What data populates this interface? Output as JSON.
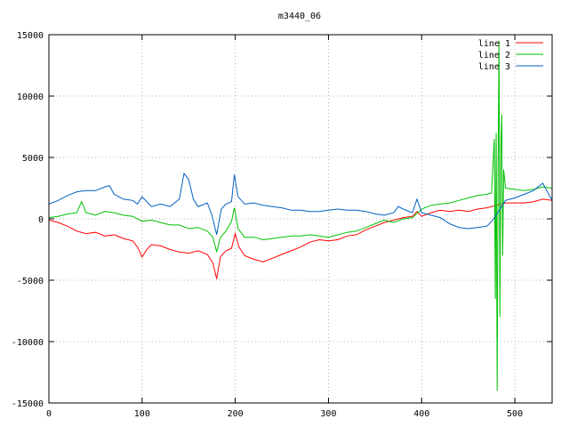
{
  "chart_data": {
    "type": "line",
    "title": "m3440_06",
    "xlabel": "",
    "ylabel": "",
    "xlim": [
      0,
      540
    ],
    "ylim": [
      -15000,
      15000
    ],
    "x_ticks": [
      0,
      100,
      200,
      300,
      400,
      500
    ],
    "y_ticks": [
      -15000,
      -10000,
      -5000,
      0,
      5000,
      10000,
      15000
    ],
    "grid": true,
    "legend_position": "top-right",
    "series": [
      {
        "name": "line 1",
        "color": "#ff0000",
        "points": [
          [
            0,
            -100
          ],
          [
            10,
            -300
          ],
          [
            20,
            -600
          ],
          [
            30,
            -1000
          ],
          [
            40,
            -1200
          ],
          [
            50,
            -1100
          ],
          [
            60,
            -1400
          ],
          [
            70,
            -1300
          ],
          [
            80,
            -1600
          ],
          [
            90,
            -1800
          ],
          [
            95,
            -2300
          ],
          [
            100,
            -3100
          ],
          [
            105,
            -2500
          ],
          [
            110,
            -2100
          ],
          [
            120,
            -2200
          ],
          [
            130,
            -2500
          ],
          [
            140,
            -2700
          ],
          [
            150,
            -2800
          ],
          [
            160,
            -2600
          ],
          [
            170,
            -2900
          ],
          [
            176,
            -3600
          ],
          [
            180,
            -4900
          ],
          [
            184,
            -3100
          ],
          [
            190,
            -2600
          ],
          [
            196,
            -2400
          ],
          [
            200,
            -1200
          ],
          [
            204,
            -2300
          ],
          [
            210,
            -3000
          ],
          [
            220,
            -3300
          ],
          [
            230,
            -3500
          ],
          [
            240,
            -3200
          ],
          [
            250,
            -2900
          ],
          [
            260,
            -2600
          ],
          [
            270,
            -2300
          ],
          [
            280,
            -1900
          ],
          [
            290,
            -1700
          ],
          [
            300,
            -1800
          ],
          [
            310,
            -1700
          ],
          [
            320,
            -1400
          ],
          [
            330,
            -1300
          ],
          [
            340,
            -900
          ],
          [
            350,
            -600
          ],
          [
            360,
            -300
          ],
          [
            370,
            -100
          ],
          [
            380,
            100
          ],
          [
            390,
            200
          ],
          [
            395,
            600
          ],
          [
            400,
            200
          ],
          [
            410,
            500
          ],
          [
            420,
            700
          ],
          [
            430,
            600
          ],
          [
            440,
            700
          ],
          [
            450,
            600
          ],
          [
            460,
            800
          ],
          [
            470,
            900
          ],
          [
            480,
            1100
          ],
          [
            490,
            1300
          ],
          [
            500,
            1300
          ],
          [
            510,
            1300
          ],
          [
            520,
            1400
          ],
          [
            530,
            1600
          ],
          [
            540,
            1500
          ]
        ]
      },
      {
        "name": "line 2",
        "color": "#00c000",
        "points": [
          [
            0,
            100
          ],
          [
            10,
            200
          ],
          [
            20,
            400
          ],
          [
            30,
            500
          ],
          [
            35,
            1400
          ],
          [
            40,
            500
          ],
          [
            50,
            300
          ],
          [
            60,
            600
          ],
          [
            70,
            500
          ],
          [
            80,
            300
          ],
          [
            90,
            200
          ],
          [
            100,
            -200
          ],
          [
            110,
            -100
          ],
          [
            120,
            -300
          ],
          [
            130,
            -500
          ],
          [
            140,
            -500
          ],
          [
            150,
            -800
          ],
          [
            160,
            -700
          ],
          [
            170,
            -1000
          ],
          [
            176,
            -1500
          ],
          [
            180,
            -2700
          ],
          [
            184,
            -1500
          ],
          [
            190,
            -1000
          ],
          [
            196,
            -200
          ],
          [
            199,
            900
          ],
          [
            203,
            -800
          ],
          [
            210,
            -1500
          ],
          [
            220,
            -1500
          ],
          [
            230,
            -1700
          ],
          [
            240,
            -1600
          ],
          [
            250,
            -1500
          ],
          [
            260,
            -1400
          ],
          [
            270,
            -1400
          ],
          [
            280,
            -1300
          ],
          [
            290,
            -1400
          ],
          [
            300,
            -1500
          ],
          [
            310,
            -1300
          ],
          [
            320,
            -1100
          ],
          [
            330,
            -1000
          ],
          [
            340,
            -700
          ],
          [
            350,
            -400
          ],
          [
            360,
            -100
          ],
          [
            370,
            -300
          ],
          [
            380,
            0
          ],
          [
            390,
            100
          ],
          [
            400,
            800
          ],
          [
            410,
            1100
          ],
          [
            420,
            1200
          ],
          [
            430,
            1300
          ],
          [
            440,
            1500
          ],
          [
            450,
            1700
          ],
          [
            460,
            1900
          ],
          [
            470,
            2000
          ],
          [
            475,
            2100
          ],
          [
            478,
            6500
          ],
          [
            479,
            -6500
          ],
          [
            480,
            7000
          ],
          [
            481,
            -14000
          ],
          [
            482,
            4000
          ],
          [
            483,
            14500
          ],
          [
            484,
            -8000
          ],
          [
            485,
            6000
          ],
          [
            486,
            8500
          ],
          [
            487,
            -3000
          ],
          [
            488,
            4000
          ],
          [
            490,
            2500
          ],
          [
            500,
            2400
          ],
          [
            510,
            2300
          ],
          [
            520,
            2400
          ],
          [
            530,
            2600
          ],
          [
            540,
            2500
          ]
        ]
      },
      {
        "name": "line 3",
        "color": "#0060c0",
        "points": [
          [
            0,
            1200
          ],
          [
            10,
            1500
          ],
          [
            20,
            1900
          ],
          [
            30,
            2200
          ],
          [
            40,
            2300
          ],
          [
            50,
            2300
          ],
          [
            60,
            2600
          ],
          [
            65,
            2700
          ],
          [
            70,
            2000
          ],
          [
            80,
            1600
          ],
          [
            90,
            1500
          ],
          [
            95,
            1200
          ],
          [
            100,
            1800
          ],
          [
            110,
            1000
          ],
          [
            120,
            1200
          ],
          [
            130,
            1000
          ],
          [
            140,
            1600
          ],
          [
            145,
            3700
          ],
          [
            150,
            3200
          ],
          [
            155,
            1600
          ],
          [
            160,
            1000
          ],
          [
            170,
            1300
          ],
          [
            175,
            300
          ],
          [
            180,
            -1300
          ],
          [
            185,
            800
          ],
          [
            190,
            1200
          ],
          [
            196,
            1400
          ],
          [
            199,
            3600
          ],
          [
            203,
            1800
          ],
          [
            210,
            1200
          ],
          [
            220,
            1300
          ],
          [
            230,
            1100
          ],
          [
            240,
            1000
          ],
          [
            250,
            900
          ],
          [
            260,
            700
          ],
          [
            270,
            700
          ],
          [
            280,
            600
          ],
          [
            290,
            600
          ],
          [
            300,
            700
          ],
          [
            310,
            800
          ],
          [
            320,
            700
          ],
          [
            330,
            700
          ],
          [
            340,
            600
          ],
          [
            350,
            400
          ],
          [
            360,
            300
          ],
          [
            370,
            500
          ],
          [
            375,
            1000
          ],
          [
            380,
            800
          ],
          [
            390,
            500
          ],
          [
            395,
            1600
          ],
          [
            400,
            500
          ],
          [
            410,
            300
          ],
          [
            420,
            100
          ],
          [
            430,
            -400
          ],
          [
            440,
            -700
          ],
          [
            450,
            -800
          ],
          [
            460,
            -700
          ],
          [
            470,
            -600
          ],
          [
            475,
            -200
          ],
          [
            480,
            300
          ],
          [
            490,
            1500
          ],
          [
            500,
            1700
          ],
          [
            510,
            2000
          ],
          [
            520,
            2300
          ],
          [
            530,
            2900
          ],
          [
            540,
            1500
          ]
        ]
      }
    ]
  }
}
